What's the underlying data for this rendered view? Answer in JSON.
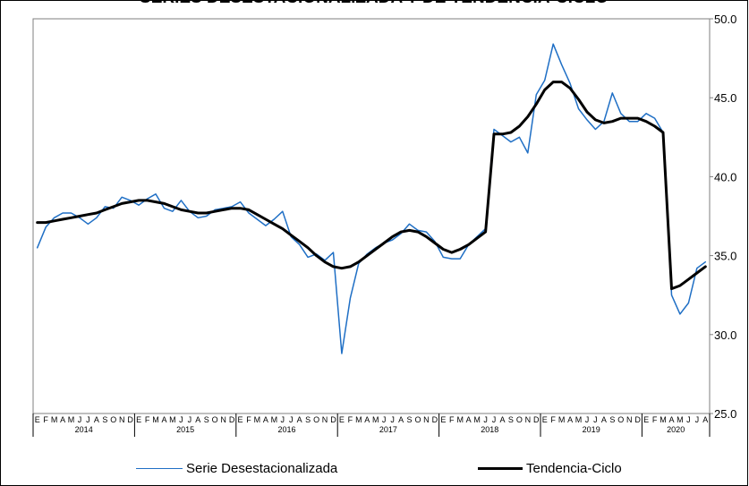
{
  "chart_data": {
    "type": "line",
    "title": "SERIES DESESTACIONALIZADA Y DE TENDENCIA-CICLO",
    "ylim": [
      25.0,
      50.0
    ],
    "y_ticks": [
      "25.0",
      "30.0",
      "35.0",
      "40.0",
      "45.0",
      "50.0"
    ],
    "y_axis_side": "right",
    "grid": false,
    "legend_position": "bottom",
    "month_labels": [
      "E",
      "F",
      "M",
      "A",
      "M",
      "J",
      "J",
      "A",
      "S",
      "O",
      "N",
      "D"
    ],
    "years": [
      "2014",
      "2015",
      "2016",
      "2017",
      "2018",
      "2019",
      "2020"
    ],
    "n_points": 80,
    "series": [
      {
        "name": "Serie Desestacionalizada",
        "color": "#1f6fc5",
        "values": [
          35.5,
          36.8,
          37.4,
          37.7,
          37.7,
          37.4,
          37.0,
          37.4,
          38.1,
          38.0,
          38.7,
          38.5,
          38.2,
          38.6,
          38.9,
          38.0,
          37.8,
          38.5,
          37.8,
          37.4,
          37.5,
          37.9,
          38.0,
          38.1,
          38.4,
          37.7,
          37.3,
          36.9,
          37.3,
          37.8,
          36.2,
          35.7,
          34.9,
          35.1,
          34.7,
          35.2,
          28.8,
          32.3,
          34.5,
          35.1,
          35.5,
          35.8,
          36.0,
          36.4,
          37.0,
          36.6,
          36.5,
          35.9,
          34.9,
          34.8,
          34.8,
          35.7,
          36.2,
          36.7,
          43.0,
          42.6,
          42.2,
          42.5,
          41.5,
          45.2,
          46.1,
          48.4,
          47.1,
          45.9,
          44.3,
          43.6,
          43.0,
          43.5,
          45.3,
          44.0,
          43.5,
          43.5,
          44.0,
          43.7,
          42.8,
          32.5,
          31.3,
          32.0,
          34.2,
          34.6
        ]
      },
      {
        "name": "Tendencia-Ciclo",
        "color": "#000000",
        "values": [
          37.1,
          37.1,
          37.2,
          37.3,
          37.4,
          37.5,
          37.6,
          37.7,
          37.9,
          38.1,
          38.3,
          38.4,
          38.5,
          38.5,
          38.4,
          38.3,
          38.1,
          37.9,
          37.8,
          37.7,
          37.7,
          37.8,
          37.9,
          38.0,
          38.0,
          37.9,
          37.6,
          37.3,
          37.0,
          36.7,
          36.3,
          35.9,
          35.5,
          35.0,
          34.6,
          34.3,
          34.2,
          34.3,
          34.6,
          35.0,
          35.4,
          35.8,
          36.2,
          36.5,
          36.6,
          36.5,
          36.2,
          35.8,
          35.4,
          35.2,
          35.4,
          35.7,
          36.1,
          36.5,
          42.7,
          42.7,
          42.8,
          43.2,
          43.8,
          44.6,
          45.5,
          46.0,
          46.0,
          45.6,
          44.9,
          44.1,
          43.6,
          43.4,
          43.5,
          43.7,
          43.7,
          43.7,
          43.5,
          43.2,
          42.8,
          32.9,
          33.1,
          33.5,
          33.9,
          34.3
        ]
      }
    ]
  }
}
